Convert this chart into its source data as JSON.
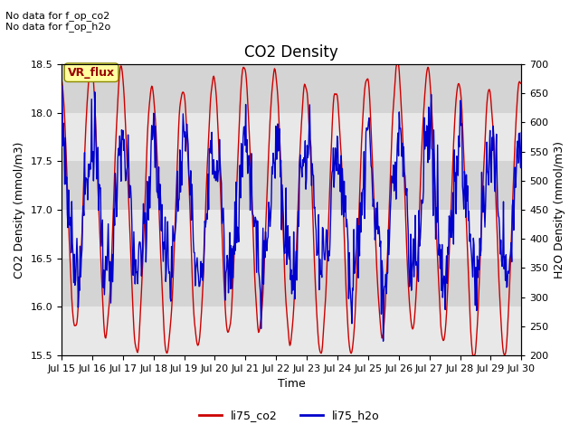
{
  "title": "CO2 Density",
  "xlabel": "Time",
  "ylabel_left": "CO2 Density (mmol/m3)",
  "ylabel_right": "H2O Density (mmol/m3)",
  "ylim_left": [
    15.5,
    18.5
  ],
  "ylim_right": [
    200,
    700
  ],
  "xlim": [
    0,
    15
  ],
  "xtick_labels": [
    "Jul 15",
    "Jul 16",
    "Jul 17",
    "Jul 18",
    "Jul 19",
    "Jul 20",
    "Jul 21",
    "Jul 22",
    "Jul 23",
    "Jul 24",
    "Jul 25",
    "Jul 26",
    "Jul 27",
    "Jul 28",
    "Jul 29",
    "Jul 30"
  ],
  "note_lines": [
    "No data for f_op_co2",
    "No data for f_op_h2o"
  ],
  "vr_flux_label": "VR_flux",
  "legend_entries": [
    "li75_co2",
    "li75_h2o"
  ],
  "co2_color": "#CC0000",
  "h2o_color": "#0000CC",
  "vr_flux_bg": "#FFFFA0",
  "vr_flux_text": "#990000",
  "background_color": "#FFFFFF",
  "plot_bg_light": "#E8E8E8",
  "plot_bg_dark": "#D4D4D4",
  "title_fontsize": 12,
  "axis_fontsize": 9,
  "tick_fontsize": 8,
  "note_fontsize": 8,
  "legend_fontsize": 9,
  "line_width": 1.0
}
